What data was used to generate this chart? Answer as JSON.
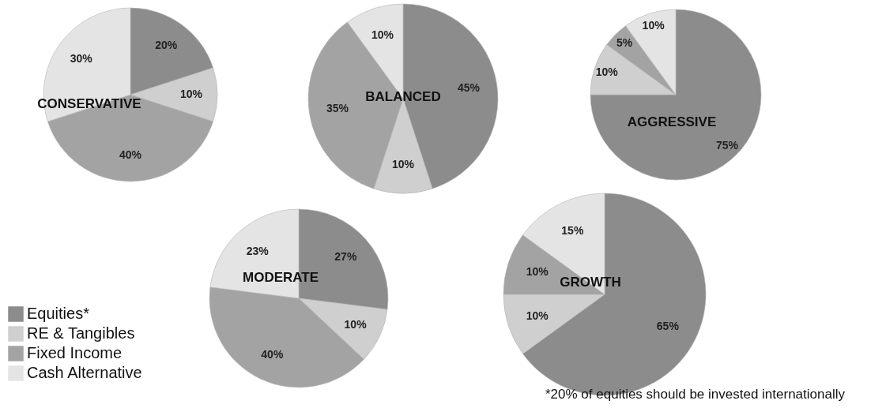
{
  "chart_data": [
    {
      "type": "pie",
      "title": "CONSERVATIVE",
      "categories": [
        null,
        null,
        null,
        null
      ],
      "values": [
        20,
        10,
        40,
        30
      ],
      "value_labels": [
        "20%",
        "10%",
        "40%",
        "30%"
      ],
      "colors": [
        "#8c8c8c",
        "#cfcfcf",
        "#a3a3a3",
        "#e4e4e4"
      ]
    },
    {
      "type": "pie",
      "title": "BALANCED",
      "categories": [
        null,
        null,
        null,
        null
      ],
      "values": [
        45,
        10,
        35,
        10
      ],
      "value_labels": [
        "45%",
        "10%",
        "35%",
        "10%"
      ],
      "colors": [
        "#8c8c8c",
        "#cfcfcf",
        "#a3a3a3",
        "#e4e4e4"
      ]
    },
    {
      "type": "pie",
      "title": "AGGRESSIVE",
      "categories": [
        null,
        null,
        null,
        null
      ],
      "values": [
        75,
        10,
        5,
        10
      ],
      "value_labels": [
        "75%",
        "10%",
        "5%",
        "10%"
      ],
      "colors": [
        "#8c8c8c",
        "#cfcfcf",
        "#a3a3a3",
        "#e4e4e4"
      ]
    },
    {
      "type": "pie",
      "title": "MODERATE",
      "categories": [
        "Equities*",
        "RE & Tangibles",
        "Fixed Income",
        "Cash Alternative"
      ],
      "values": [
        27,
        10,
        40,
        23
      ],
      "value_labels": [
        "27%",
        "10%",
        "40%",
        "23%"
      ],
      "colors": [
        "#8c8c8c",
        "#cfcfcf",
        "#a3a3a3",
        "#e4e4e4"
      ],
      "legend": "bottom left"
    },
    {
      "type": "pie",
      "title": "GROWTH",
      "categories": [
        null,
        null,
        null,
        null
      ],
      "values": [
        65,
        10,
        10,
        15
      ],
      "value_labels": [
        "65%",
        "10%",
        "10%",
        "15%"
      ],
      "colors": [
        "#8c8c8c",
        "#cfcfcf",
        "#a3a3a3",
        "#e4e4e4"
      ],
      "annotations": [
        "*20% of equities should be invested internationally"
      ]
    }
  ]
}
